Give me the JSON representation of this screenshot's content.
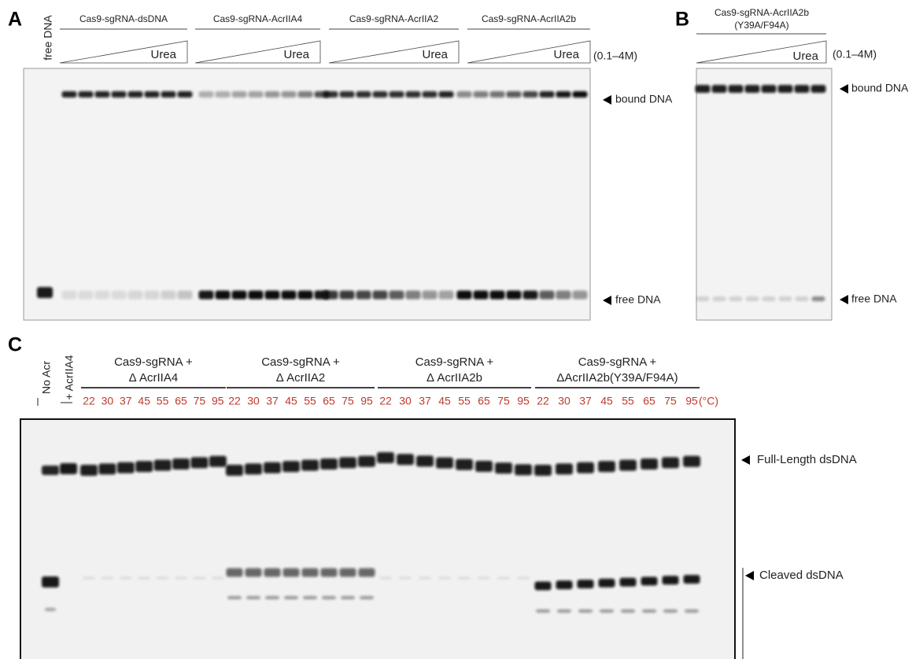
{
  "panel_a": {
    "label": "A",
    "free_lane_label": "free DNA",
    "groups": [
      {
        "name": "Cas9-sgRNA-dsDNA",
        "gradient_label": "Urea"
      },
      {
        "name": "Cas9-sgRNA-AcrIIA4",
        "gradient_label": "Urea"
      },
      {
        "name": "Cas9-sgRNA-AcrIIA2",
        "gradient_label": "Urea"
      },
      {
        "name": "Cas9-sgRNA-AcrIIA2b",
        "gradient_label": "Urea"
      }
    ],
    "range": "(0.1–4M)",
    "markers": [
      "bound DNA",
      "free DNA"
    ]
  },
  "panel_b": {
    "label": "B",
    "title": [
      "Cas9-sgRNA-AcrIIA2b",
      "(Y39A/F94A)"
    ],
    "gradient_label": "Urea",
    "range": "(0.1–4M)",
    "markers": [
      "bound DNA",
      "free DNA"
    ]
  },
  "panel_c": {
    "label": "C",
    "control_lanes": [
      "No Acr",
      "+ AcrIIA4"
    ],
    "groups": [
      {
        "title": [
          "Cas9-sgRNA +",
          "Δ AcrIIA4"
        ],
        "temperatures": [
          22,
          30,
          37,
          45,
          55,
          65,
          75,
          95
        ]
      },
      {
        "title": [
          "Cas9-sgRNA +",
          "Δ AcrIIA2"
        ],
        "temperatures": [
          22,
          30,
          37,
          45,
          55,
          65,
          75,
          95
        ]
      },
      {
        "title": [
          "Cas9-sgRNA +",
          "Δ AcrIIA2b"
        ],
        "temperatures": [
          22,
          30,
          37,
          45,
          55,
          65,
          75,
          95
        ]
      },
      {
        "title": [
          "Cas9-sgRNA +",
          "ΔAcrIIA2b(Y39A/F94A)"
        ],
        "temperatures": [
          22,
          30,
          37,
          45,
          55,
          65,
          75,
          95
        ]
      }
    ],
    "unit": "(°C)",
    "markers": [
      "Full-Length dsDNA",
      "Cleaved dsDNA"
    ]
  }
}
